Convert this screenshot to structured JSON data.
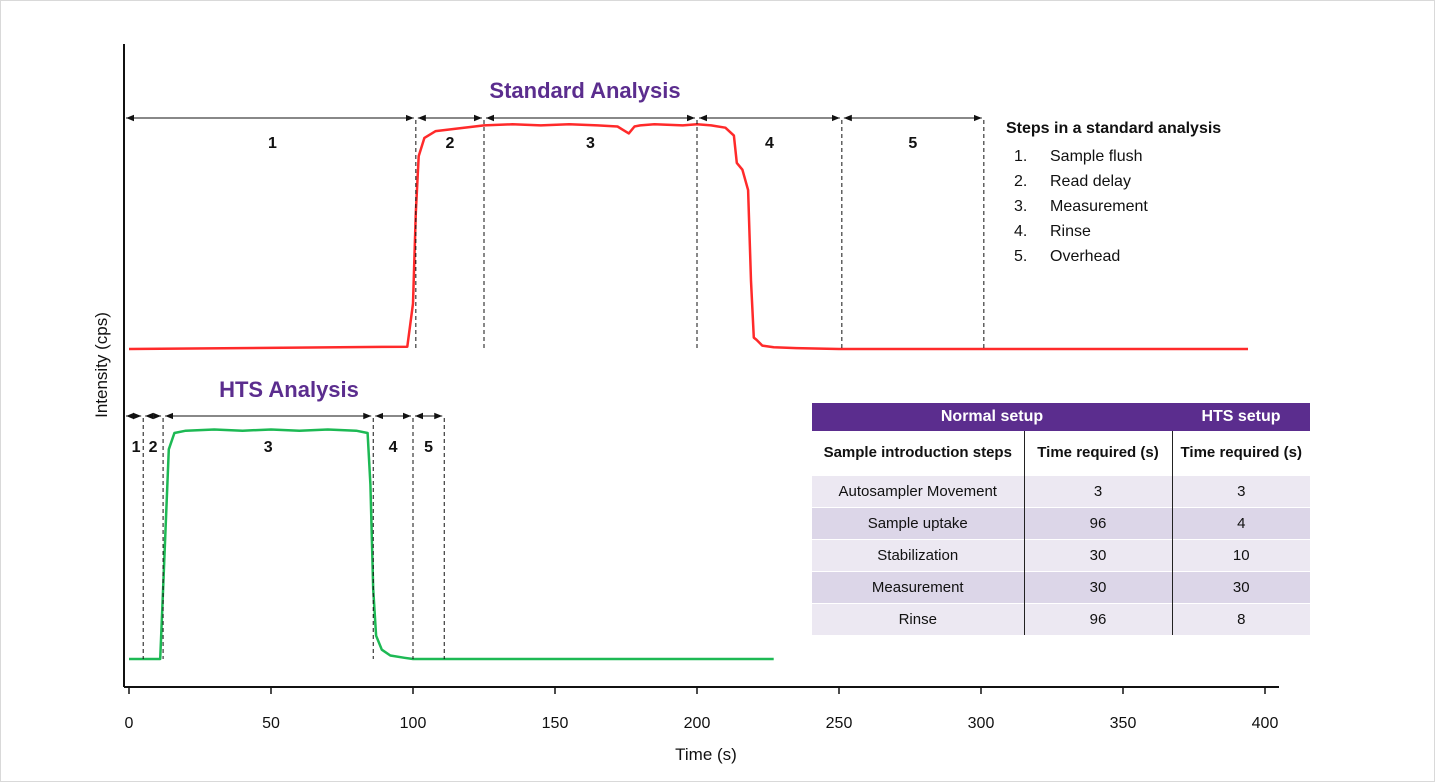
{
  "chart_data": {
    "type": "line",
    "xlabel": "Time (s)",
    "ylabel": "Intensity (cps)",
    "xlim": [
      0,
      400
    ],
    "xticks": [
      0,
      50,
      100,
      150,
      200,
      250,
      300,
      350,
      400
    ],
    "grid": false,
    "panels": [
      {
        "title": "Standard Analysis",
        "color": "#ff2a2a",
        "x": [
          0,
          98,
          100,
          101,
          102,
          104,
          108,
          115,
          125,
          135,
          145,
          155,
          165,
          172,
          176,
          178,
          180,
          185,
          195,
          200,
          205,
          210,
          213,
          214,
          216,
          218,
          219,
          220,
          221,
          223,
          227,
          235,
          250,
          300,
          394
        ],
        "y": [
          0,
          0.01,
          0.2,
          0.6,
          0.85,
          0.93,
          0.96,
          0.97,
          0.985,
          0.99,
          0.985,
          0.99,
          0.985,
          0.98,
          0.95,
          0.98,
          0.985,
          0.99,
          0.985,
          0.99,
          0.985,
          0.975,
          0.94,
          0.82,
          0.79,
          0.7,
          0.3,
          0.05,
          0.04,
          0.015,
          0.008,
          0.004,
          0,
          0,
          0
        ],
        "boundaries": [
          101,
          125,
          200,
          251,
          301
        ],
        "segments": [
          "1",
          "2",
          "3",
          "4",
          "5"
        ]
      },
      {
        "title": "HTS Analysis",
        "color": "#1db954",
        "x": [
          0,
          11,
          12,
          14,
          16,
          20,
          30,
          40,
          50,
          60,
          70,
          80,
          84,
          85,
          86,
          87,
          89,
          92,
          97,
          100,
          227
        ],
        "y": [
          0,
          0,
          0.3,
          0.9,
          0.97,
          0.98,
          0.985,
          0.98,
          0.985,
          0.98,
          0.985,
          0.98,
          0.97,
          0.75,
          0.3,
          0.1,
          0.04,
          0.015,
          0.005,
          0,
          0
        ],
        "boundaries": [
          5,
          12,
          86,
          100,
          111
        ],
        "segments": [
          "1",
          "2",
          "3",
          "4",
          "5"
        ]
      }
    ]
  },
  "steps": {
    "heading": "Steps in a standard analysis",
    "items": [
      {
        "num": "1.",
        "label": "Sample flush"
      },
      {
        "num": "2.",
        "label": "Read delay"
      },
      {
        "num": "3.",
        "label": "Measurement"
      },
      {
        "num": "4.",
        "label": "Rinse"
      },
      {
        "num": "5.",
        "label": "Overhead"
      }
    ]
  },
  "setup_table": {
    "group_normal": "Normal setup",
    "group_hts": "HTS setup",
    "col_steps": "Sample introduction steps",
    "col_normal": "Time required (s)",
    "col_hts": "Time required (s)",
    "rows": [
      {
        "step": "Autosampler Movement",
        "normal": "3",
        "hts": "3"
      },
      {
        "step": "Sample uptake",
        "normal": "96",
        "hts": "4"
      },
      {
        "step": "Stabilization",
        "normal": "30",
        "hts": "10"
      },
      {
        "step": "Measurement",
        "normal": "30",
        "hts": "30"
      },
      {
        "step": "Rinse",
        "normal": "96",
        "hts": "8"
      }
    ]
  }
}
